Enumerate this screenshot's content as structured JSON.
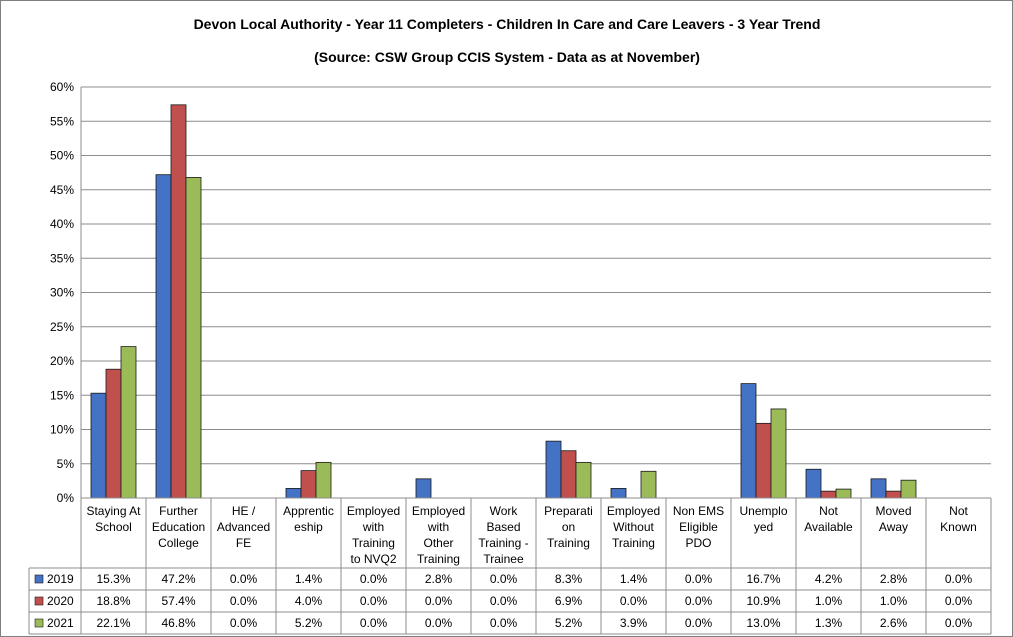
{
  "chart_data": {
    "type": "bar",
    "title": "Devon Local Authority - Year 11 Completers - Children In Care and Care Leavers - 3 Year Trend",
    "subtitle": "(Source: CSW Group CCIS System - Data as at November)",
    "xlabel": "",
    "ylabel": "",
    "ylim": [
      0,
      0.6
    ],
    "yticks": [
      0,
      0.05,
      0.1,
      0.15,
      0.2,
      0.25,
      0.3,
      0.35,
      0.4,
      0.45,
      0.5,
      0.55,
      0.6
    ],
    "ytick_labels": [
      "0%",
      "5%",
      "10%",
      "15%",
      "20%",
      "25%",
      "30%",
      "35%",
      "40%",
      "45%",
      "50%",
      "55%",
      "60%"
    ],
    "grid": true,
    "legend": "data-table",
    "categories": [
      [
        "Staying At",
        "School"
      ],
      [
        "Further",
        "Education",
        "College"
      ],
      [
        "HE /",
        "Advanced",
        "FE"
      ],
      [
        "Apprentic",
        "eship"
      ],
      [
        "Employed",
        "with",
        "Training",
        "to NVQ2"
      ],
      [
        "Employed",
        "with",
        "Other",
        "Training"
      ],
      [
        "Work",
        "Based",
        "Training -",
        "Trainee"
      ],
      [
        "Preparati",
        "on",
        "Training"
      ],
      [
        "Employed",
        "Without",
        "Training"
      ],
      [
        "Non EMS",
        "Eligible",
        "PDO"
      ],
      [
        "Unemplo",
        "yed"
      ],
      [
        "Not",
        "Available"
      ],
      [
        "Moved",
        "Away"
      ],
      [
        "Not",
        "Known"
      ]
    ],
    "series": [
      {
        "name": "2019",
        "color": "#4472c4",
        "values": [
          0.153,
          0.472,
          0.0,
          0.014,
          0.0,
          0.028,
          0.0,
          0.083,
          0.014,
          0.0,
          0.167,
          0.042,
          0.028,
          0.0
        ],
        "labels": [
          "15.3%",
          "47.2%",
          "0.0%",
          "1.4%",
          "0.0%",
          "2.8%",
          "0.0%",
          "8.3%",
          "1.4%",
          "0.0%",
          "16.7%",
          "4.2%",
          "2.8%",
          "0.0%"
        ]
      },
      {
        "name": "2020",
        "color": "#c0504d",
        "values": [
          0.188,
          0.574,
          0.0,
          0.04,
          0.0,
          0.0,
          0.0,
          0.069,
          0.0,
          0.0,
          0.109,
          0.01,
          0.01,
          0.0
        ],
        "labels": [
          "18.8%",
          "57.4%",
          "0.0%",
          "4.0%",
          "0.0%",
          "0.0%",
          "0.0%",
          "6.9%",
          "0.0%",
          "0.0%",
          "10.9%",
          "1.0%",
          "1.0%",
          "0.0%"
        ]
      },
      {
        "name": "2021",
        "color": "#9bbb59",
        "values": [
          0.221,
          0.468,
          0.0,
          0.052,
          0.0,
          0.0,
          0.0,
          0.052,
          0.039,
          0.0,
          0.13,
          0.013,
          0.026,
          0.0
        ],
        "labels": [
          "22.1%",
          "46.8%",
          "0.0%",
          "5.2%",
          "0.0%",
          "0.0%",
          "0.0%",
          "5.2%",
          "3.9%",
          "0.0%",
          "13.0%",
          "1.3%",
          "2.6%",
          "0.0%"
        ]
      }
    ]
  }
}
